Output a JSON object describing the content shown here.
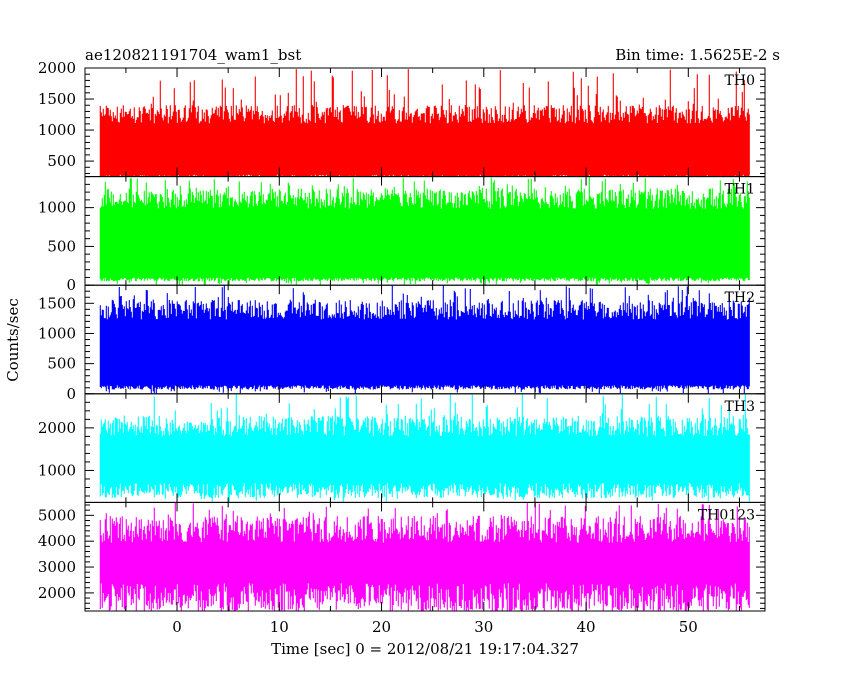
{
  "chart_data": {
    "type": "line",
    "title_left": "ae120821191704_wam1_bst",
    "title_right": "Bin time: 1.5625E-2 s",
    "xlabel": "Time [sec] 0 = 2012/08/21 19:17:04.327",
    "ylabel": "Counts/sec",
    "xlim": [
      -9,
      57.5
    ],
    "xticks": [
      0,
      10,
      20,
      30,
      40,
      50
    ],
    "x_data_range": [
      -7.5,
      56
    ],
    "panels": [
      {
        "name": "TH0",
        "color": "#ff0000",
        "ylim": [
          250,
          2000
        ],
        "yticks": [
          500,
          1000,
          1500,
          2000
        ],
        "typical_low": 200,
        "typical_high": 1350,
        "max_peak": 2000,
        "mean": 800
      },
      {
        "name": "TH1",
        "color": "#00ff00",
        "ylim": [
          0,
          1400
        ],
        "yticks": [
          0,
          500,
          1000
        ],
        "typical_low": 70,
        "typical_high": 1200,
        "max_peak": 1400,
        "mean": 650
      },
      {
        "name": "TH2",
        "color": "#0000ff",
        "ylim": [
          0,
          1800
        ],
        "yticks": [
          0,
          500,
          1000,
          1500
        ],
        "typical_low": 100,
        "typical_high": 1500,
        "max_peak": 1800,
        "mean": 780
      },
      {
        "name": "TH3",
        "color": "#00ffff",
        "ylim": [
          250,
          2800
        ],
        "yticks": [
          1000,
          2000
        ],
        "typical_low": 500,
        "typical_high": 2200,
        "max_peak": 2800,
        "mean": 1350
      },
      {
        "name": "TH0123",
        "color": "#ff00ff",
        "ylim": [
          1300,
          5500
        ],
        "yticks": [
          2000,
          3000,
          4000,
          5000
        ],
        "typical_low": 1700,
        "typical_high": 4800,
        "max_peak": 5500,
        "mean": 3300
      }
    ]
  }
}
